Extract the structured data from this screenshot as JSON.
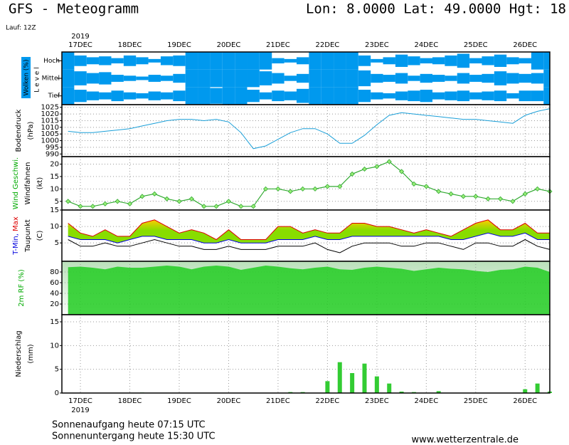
{
  "header": {
    "title": "GFS - Meteogramm",
    "location": "Lon: 8.0000 Lat: 49.0000 Hgt: 18",
    "run": "Lauf: 12Z"
  },
  "time": {
    "year": "2019",
    "xlim": [
      -9,
      228
    ],
    "xticks": [
      {
        "value": 0,
        "label": "17DEC"
      },
      {
        "value": 24,
        "label": "18DEC"
      },
      {
        "value": 48,
        "label": "19DEC"
      },
      {
        "value": 72,
        "label": "20DEC"
      },
      {
        "value": 96,
        "label": "21DEC"
      },
      {
        "value": 120,
        "label": "22DEC"
      },
      {
        "value": 144,
        "label": "23DEC"
      },
      {
        "value": 168,
        "label": "24DEC"
      },
      {
        "value": 192,
        "label": "25DEC"
      },
      {
        "value": 216,
        "label": "26DEC"
      }
    ],
    "x": [
      -6,
      0,
      6,
      12,
      18,
      24,
      30,
      36,
      42,
      48,
      54,
      60,
      66,
      72,
      78,
      84,
      90,
      96,
      102,
      108,
      114,
      120,
      126,
      132,
      138,
      144,
      150,
      156,
      162,
      168,
      174,
      180,
      186,
      192,
      198,
      204,
      210,
      216,
      222,
      228
    ]
  },
  "chart_data": [
    {
      "type": "cloud",
      "ylabel": "Wolken (%)",
      "level_label": "L e v e l",
      "color": "#0099ee",
      "series": [
        {
          "name": "Hoch",
          "values": [
            100,
            60,
            40,
            50,
            30,
            60,
            40,
            20,
            50,
            60,
            100,
            100,
            100,
            100,
            100,
            100,
            100,
            30,
            20,
            40,
            100,
            100,
            100,
            100,
            60,
            20,
            40,
            70,
            50,
            30,
            40,
            60,
            80,
            30,
            50,
            70,
            40,
            30,
            100,
            100
          ]
        },
        {
          "name": "Mittel",
          "values": [
            100,
            80,
            60,
            70,
            40,
            30,
            20,
            40,
            30,
            50,
            100,
            100,
            100,
            100,
            100,
            100,
            80,
            60,
            30,
            50,
            100,
            100,
            100,
            100,
            90,
            50,
            40,
            60,
            30,
            50,
            40,
            30,
            60,
            40,
            50,
            80,
            60,
            50,
            60,
            100
          ]
        },
        {
          "name": "Tief",
          "values": [
            100,
            70,
            50,
            40,
            60,
            40,
            30,
            50,
            40,
            60,
            100,
            100,
            90,
            100,
            100,
            70,
            40,
            60,
            50,
            80,
            100,
            100,
            100,
            100,
            70,
            40,
            30,
            50,
            60,
            70,
            40,
            50,
            60,
            40,
            50,
            60,
            30,
            60,
            60,
            100
          ]
        }
      ]
    },
    {
      "type": "line",
      "ylabel": [
        [
          {
            "text": "Bodendruck",
            "color": "#000000"
          }
        ],
        [
          {
            "text": "(hPa)",
            "color": "#000000"
          }
        ]
      ],
      "ylim": [
        988,
        1027
      ],
      "yticks": [
        990,
        995,
        1000,
        1005,
        1010,
        1015,
        1020,
        1025
      ],
      "series": [
        {
          "color": "#1a9fd8",
          "values": [
            1007,
            1006,
            1006,
            1007,
            1008,
            1009,
            1011,
            1013,
            1015,
            1016,
            1016,
            1015,
            1016,
            1014,
            1006,
            994,
            996,
            1001,
            1006,
            1009,
            1009,
            1005,
            998,
            998,
            1004,
            1012,
            1019,
            1021,
            1020,
            1019,
            1018,
            1017,
            1016,
            1016,
            1015,
            1014,
            1013,
            1019,
            1022,
            1024
          ]
        }
      ]
    },
    {
      "type": "wind",
      "ylabel": [
        [
          {
            "text": "Wind Geschwi.",
            "color": "#00aa00"
          }
        ],
        [
          {
            "text": "Windfahnen",
            "color": "#000000"
          }
        ],
        [
          {
            "text": "(kt)",
            "color": "#000000"
          }
        ]
      ],
      "ylim": [
        1.5,
        23
      ],
      "yticks": [
        5,
        10,
        15,
        20
      ],
      "series": [
        {
          "color": "#33aa33",
          "marker_color": "#99ee77",
          "values": [
            5,
            3,
            3,
            4,
            5,
            4,
            7,
            8,
            6,
            5,
            6,
            3,
            3,
            5,
            3,
            3,
            10,
            10,
            9,
            10,
            10,
            11,
            11,
            16,
            18,
            19,
            21,
            17,
            12,
            11,
            9,
            8,
            7,
            7,
            6,
            6,
            5,
            8,
            10,
            9
          ]
        }
      ]
    },
    {
      "type": "temperature",
      "ylabel": [
        [
          {
            "text": "T-Min,",
            "color": "#0000dd"
          },
          {
            "text": " Max",
            "color": "#dd0000"
          }
        ],
        [
          {
            "text": "Taupunkt",
            "color": "#000000"
          }
        ],
        [
          {
            "text": "(C)",
            "color": "#000000"
          }
        ]
      ],
      "ylim": [
        -0.6,
        15
      ],
      "yticks": [
        5,
        10,
        15
      ],
      "fill": "#88dd00",
      "fill_top": "#ffcc00",
      "series": [
        {
          "color": "#dd0000",
          "values": [
            11,
            8,
            7,
            9,
            7,
            7,
            11,
            12,
            10,
            8,
            9,
            8,
            6,
            9,
            6,
            6,
            6,
            10,
            10,
            8,
            9,
            8,
            8,
            11,
            11,
            10,
            10,
            9,
            8,
            9,
            8,
            7,
            9,
            11,
            12,
            9,
            9,
            11,
            8,
            8
          ]
        },
        {
          "color": "#0000dd",
          "values": [
            7,
            6,
            6,
            6,
            5,
            6,
            7,
            7,
            6,
            6,
            6,
            5,
            5,
            6,
            5,
            5,
            5,
            6,
            6,
            6,
            7,
            6,
            6,
            7,
            7,
            7,
            7,
            7,
            7,
            7,
            7,
            6,
            6,
            7,
            8,
            7,
            7,
            8,
            6,
            6
          ]
        },
        {
          "color": "#000000",
          "values": [
            6,
            4,
            4,
            5,
            4,
            4,
            5,
            6,
            5,
            4,
            4,
            3,
            3,
            4,
            3,
            3,
            3,
            4,
            4,
            4,
            5,
            3,
            2,
            4,
            5,
            5,
            5,
            4,
            4,
            5,
            5,
            4,
            3,
            5,
            5,
            4,
            4,
            6,
            4,
            3
          ]
        }
      ]
    },
    {
      "type": "area",
      "ylabel": [
        [
          {
            "text": "2m RF (%)",
            "color": "#00aa00"
          }
        ]
      ],
      "ylim": [
        0,
        100
      ],
      "yticks": [
        20,
        40,
        60,
        80
      ],
      "series": [
        {
          "color": "#22cc22",
          "values": [
            89,
            90,
            88,
            85,
            90,
            88,
            88,
            90,
            92,
            90,
            85,
            90,
            92,
            90,
            84,
            88,
            92,
            90,
            87,
            85,
            88,
            90,
            85,
            84,
            88,
            90,
            88,
            86,
            82,
            85,
            88,
            86,
            85,
            82,
            80,
            84,
            85,
            90,
            88,
            80
          ]
        }
      ]
    },
    {
      "type": "bar",
      "ylabel": [
        [
          {
            "text": "Niederschlag",
            "color": "#000000"
          }
        ],
        [
          {
            "text": "(mm)",
            "color": "#000000"
          }
        ]
      ],
      "ylim": [
        0,
        16.5
      ],
      "yticks": [
        0,
        5,
        10,
        15
      ],
      "series": [
        {
          "color": "#33cc33",
          "values": [
            0,
            0,
            0,
            0,
            0,
            0,
            0.1,
            0,
            0,
            0,
            0,
            0,
            0,
            0,
            0,
            0,
            0,
            0,
            0.2,
            0.2,
            0,
            2.5,
            6.5,
            4.2,
            6.2,
            3.5,
            2,
            0.3,
            0.2,
            0,
            0.4,
            0,
            0,
            0,
            0,
            0,
            0,
            0.8,
            2,
            0.3
          ]
        }
      ]
    }
  ],
  "footer": {
    "sunrise": "Sonnenaufgang heute 07:15 UTC",
    "sunset": "Sonnenuntergang heute 15:30 UTC",
    "source": "www.wetterzentrale.de"
  }
}
